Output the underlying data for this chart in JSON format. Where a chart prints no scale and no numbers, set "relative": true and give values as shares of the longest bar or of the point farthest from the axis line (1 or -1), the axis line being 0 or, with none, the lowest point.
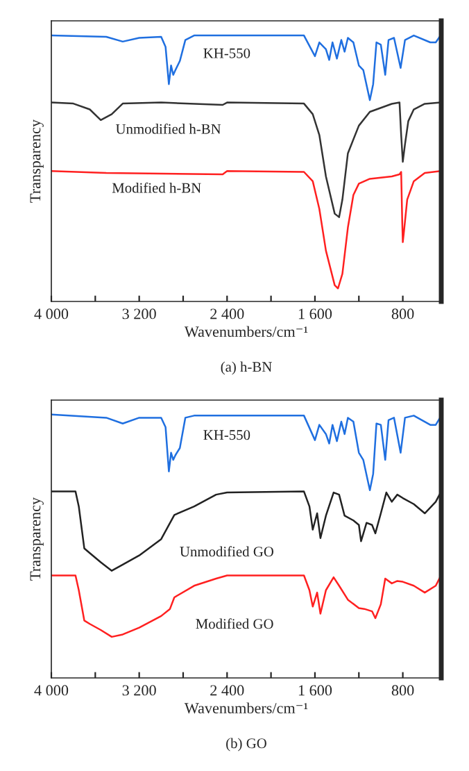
{
  "chart_data": [
    {
      "type": "line",
      "title": "(a) h-BN",
      "xlabel": "Wavenumbers/cm⁻¹",
      "ylabel": "Transparency",
      "relative": true,
      "grid": false,
      "legend": false,
      "xlim": [
        4000,
        450
      ],
      "xticks": [
        {
          "value": 4000,
          "label": "4 000"
        },
        {
          "value": 3600,
          "label": null
        },
        {
          "value": 3200,
          "label": "3 200"
        },
        {
          "value": 2800,
          "label": null
        },
        {
          "value": 2400,
          "label": "2 400"
        },
        {
          "value": 2000,
          "label": null
        },
        {
          "value": 1600,
          "label": "1 600"
        },
        {
          "value": 1200,
          "label": null
        },
        {
          "value": 800,
          "label": "800"
        }
      ],
      "series": [
        {
          "name": "KH-550",
          "color": "#1f6fe0",
          "x": [
            4000,
            3500,
            3350,
            3200,
            3000,
            2960,
            2930,
            2910,
            2890,
            2870,
            2830,
            2780,
            2700,
            1700,
            1600,
            1560,
            1500,
            1470,
            1440,
            1400,
            1360,
            1330,
            1300,
            1250,
            1200,
            1160,
            1100,
            1070,
            1040,
            1000,
            960,
            930,
            880,
            820,
            780,
            700,
            550,
            500,
            456
          ],
          "values": [
            1.0,
            0.995,
            0.977,
            0.991,
            0.995,
            0.957,
            0.817,
            0.887,
            0.852,
            0.87,
            0.904,
            0.983,
            1.0,
            1.0,
            0.922,
            0.974,
            0.948,
            0.908,
            0.974,
            0.913,
            0.983,
            0.939,
            0.991,
            0.974,
            0.887,
            0.87,
            0.757,
            0.817,
            0.974,
            0.965,
            0.852,
            0.983,
            0.991,
            0.878,
            0.983,
            1.0,
            0.974,
            0.974,
            1.0
          ]
        },
        {
          "name": "Unmodified h-BN",
          "color": "#333333",
          "x": [
            4000,
            3800,
            3650,
            3550,
            3450,
            3350,
            3000,
            2440,
            2400,
            1700,
            1620,
            1560,
            1500,
            1420,
            1380,
            1350,
            1300,
            1200,
            1100,
            900,
            830,
            815,
            800,
            780,
            750,
            700,
            600,
            456
          ],
          "values": [
            0.748,
            0.744,
            0.722,
            0.682,
            0.704,
            0.744,
            0.748,
            0.739,
            0.748,
            0.744,
            0.704,
            0.626,
            0.47,
            0.33,
            0.317,
            0.383,
            0.557,
            0.661,
            0.713,
            0.743,
            0.748,
            0.626,
            0.525,
            0.591,
            0.678,
            0.722,
            0.743,
            0.748
          ]
        },
        {
          "name": "Modified h-BN",
          "color": "#ff2020",
          "x": [
            4000,
            3500,
            2440,
            2400,
            1700,
            1620,
            1560,
            1500,
            1420,
            1390,
            1350,
            1300,
            1250,
            1200,
            1100,
            900,
            830,
            815,
            805,
            800,
            790,
            760,
            700,
            600,
            456
          ],
          "values": [
            0.49,
            0.483,
            0.478,
            0.49,
            0.487,
            0.452,
            0.348,
            0.191,
            0.061,
            0.049,
            0.104,
            0.278,
            0.4,
            0.443,
            0.461,
            0.47,
            0.478,
            0.487,
            0.296,
            0.223,
            0.261,
            0.383,
            0.452,
            0.483,
            0.49
          ]
        }
      ]
    },
    {
      "type": "line",
      "title": "(b) GO",
      "xlabel": "Wavenumbers/cm⁻¹",
      "ylabel": "Transparency",
      "relative": true,
      "grid": false,
      "legend": false,
      "xlim": [
        4000,
        450
      ],
      "xticks": [
        {
          "value": 4000,
          "label": "4 000"
        },
        {
          "value": 3600,
          "label": null
        },
        {
          "value": 3200,
          "label": "3 200"
        },
        {
          "value": 2800,
          "label": null
        },
        {
          "value": 2400,
          "label": "2 400"
        },
        {
          "value": 2000,
          "label": null
        },
        {
          "value": 1600,
          "label": "1 600"
        },
        {
          "value": 1200,
          "label": null
        },
        {
          "value": 800,
          "label": "800"
        }
      ],
      "series": [
        {
          "name": "KH-550",
          "color": "#1f6fe0",
          "x": [
            4000,
            3500,
            3350,
            3200,
            3000,
            2960,
            2930,
            2910,
            2890,
            2870,
            2830,
            2780,
            2700,
            1700,
            1600,
            1560,
            1500,
            1470,
            1440,
            1400,
            1360,
            1330,
            1300,
            1250,
            1200,
            1160,
            1100,
            1070,
            1040,
            1000,
            960,
            930,
            880,
            820,
            780,
            700,
            550,
            500,
            456
          ],
          "values": [
            1.0,
            0.988,
            0.966,
            0.988,
            0.988,
            0.952,
            0.784,
            0.855,
            0.828,
            0.846,
            0.873,
            0.988,
            0.996,
            0.996,
            0.903,
            0.961,
            0.926,
            0.89,
            0.961,
            0.899,
            0.973,
            0.926,
            0.988,
            0.973,
            0.855,
            0.828,
            0.713,
            0.775,
            0.966,
            0.961,
            0.828,
            0.979,
            0.988,
            0.855,
            0.988,
            0.996,
            0.961,
            0.961,
            0.991
          ]
        },
        {
          "name": "Unmodified GO",
          "color": "#222222",
          "x": [
            4000,
            3780,
            3750,
            3700,
            3650,
            3550,
            3450,
            3350,
            3200,
            3000,
            2880,
            2700,
            2500,
            2400,
            1700,
            1650,
            1620,
            1580,
            1550,
            1500,
            1430,
            1380,
            1330,
            1250,
            1200,
            1180,
            1130,
            1080,
            1050,
            1000,
            950,
            900,
            850,
            800,
            700,
            600,
            540,
            500,
            456
          ],
          "values": [
            0.708,
            0.708,
            0.651,
            0.492,
            0.474,
            0.439,
            0.407,
            0.43,
            0.465,
            0.527,
            0.619,
            0.651,
            0.696,
            0.704,
            0.708,
            0.651,
            0.563,
            0.625,
            0.531,
            0.616,
            0.704,
            0.696,
            0.616,
            0.598,
            0.581,
            0.519,
            0.589,
            0.581,
            0.549,
            0.625,
            0.704,
            0.669,
            0.696,
            0.683,
            0.66,
            0.625,
            0.651,
            0.669,
            0.704
          ]
        },
        {
          "name": "Modified GO",
          "color": "#ff2020",
          "x": [
            4000,
            3780,
            3750,
            3700,
            3650,
            3550,
            3450,
            3350,
            3200,
            3000,
            2920,
            2880,
            2700,
            2500,
            2400,
            1700,
            1650,
            1620,
            1580,
            1550,
            1500,
            1430,
            1380,
            1300,
            1200,
            1150,
            1080,
            1050,
            1000,
            960,
            900,
            850,
            800,
            700,
            600,
            500,
            456
          ],
          "values": [
            0.389,
            0.389,
            0.333,
            0.218,
            0.205,
            0.182,
            0.156,
            0.165,
            0.191,
            0.235,
            0.262,
            0.306,
            0.35,
            0.377,
            0.389,
            0.389,
            0.333,
            0.271,
            0.324,
            0.244,
            0.333,
            0.382,
            0.35,
            0.297,
            0.265,
            0.262,
            0.253,
            0.227,
            0.28,
            0.377,
            0.359,
            0.368,
            0.365,
            0.35,
            0.324,
            0.35,
            0.386
          ]
        }
      ]
    }
  ]
}
